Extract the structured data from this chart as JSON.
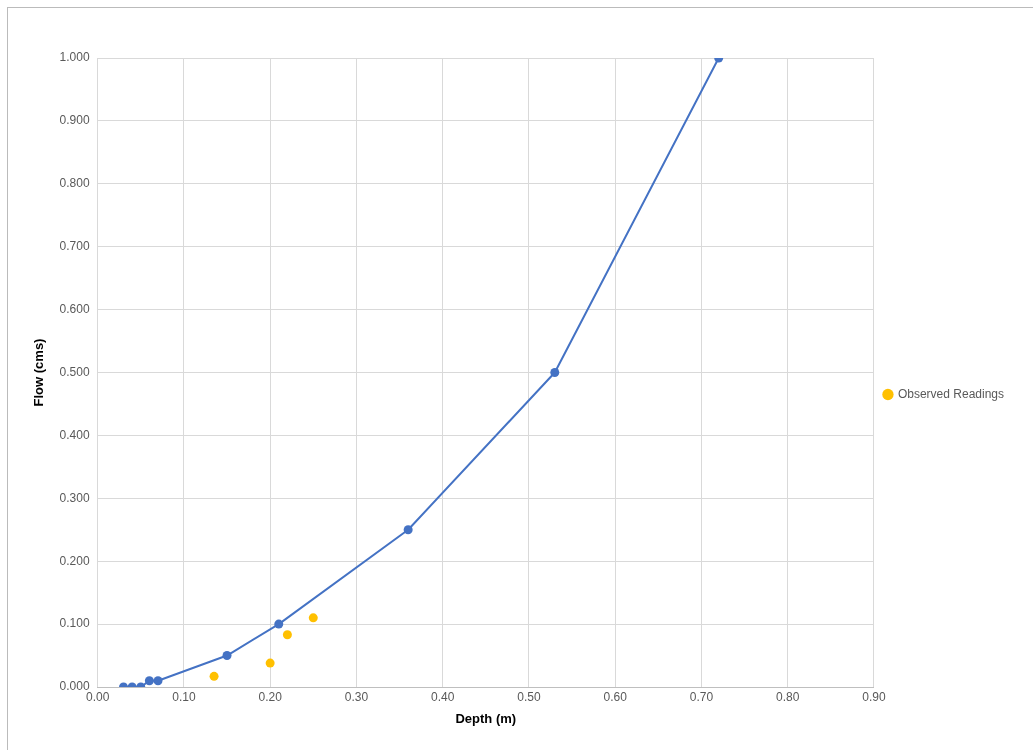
{
  "chart_data": {
    "type": "scatter",
    "xlabel": "Depth (m)",
    "ylabel": "Flow (cms)",
    "series": [
      {
        "name": "Observed Readings",
        "type": "scatter",
        "color": "#ffc000",
        "x": [
          0.135,
          0.2,
          0.22,
          0.25
        ],
        "values": [
          0.017,
          0.038,
          0.083,
          0.11
        ]
      },
      {
        "type": "line",
        "color": "#4472c4",
        "x": [
          0.03,
          0.04,
          0.05,
          0.06,
          0.07,
          0.15,
          0.21,
          0.36,
          0.53,
          0.72
        ],
        "values": [
          0,
          0,
          0,
          0.01,
          0.01,
          0.05,
          0.1,
          0.25,
          0.5,
          1.0
        ]
      }
    ],
    "xlim": [
      0,
      0.9
    ],
    "ylim": [
      0,
      1
    ],
    "xticks": [
      {
        "value": 0,
        "label": "0.00"
      },
      {
        "value": 0.1,
        "label": "0.10"
      },
      {
        "value": 0.2,
        "label": "0.20"
      },
      {
        "value": 0.3,
        "label": "0.30"
      },
      {
        "value": 0.4,
        "label": "0.40"
      },
      {
        "value": 0.5,
        "label": "0.50"
      },
      {
        "value": 0.6,
        "label": "0.60"
      },
      {
        "value": 0.7,
        "label": "0.70"
      },
      {
        "value": 0.8,
        "label": "0.80"
      },
      {
        "value": 0.9,
        "label": "0.90"
      }
    ],
    "yticks": [
      {
        "value": 0,
        "label": "0.000"
      },
      {
        "value": 0.1,
        "label": "0.100"
      },
      {
        "value": 0.2,
        "label": "0.200"
      },
      {
        "value": 0.3,
        "label": "0.300"
      },
      {
        "value": 0.4,
        "label": "0.400"
      },
      {
        "value": 0.5,
        "label": "0.500"
      },
      {
        "value": 0.6,
        "label": "0.600"
      },
      {
        "value": 0.7,
        "label": "0.700"
      },
      {
        "value": 0.8,
        "label": "0.800"
      },
      {
        "value": 0.9,
        "label": "0.900"
      },
      {
        "value": 1,
        "label": "1.000"
      }
    ],
    "grid": true,
    "legend": "right",
    "marker": "circle"
  }
}
